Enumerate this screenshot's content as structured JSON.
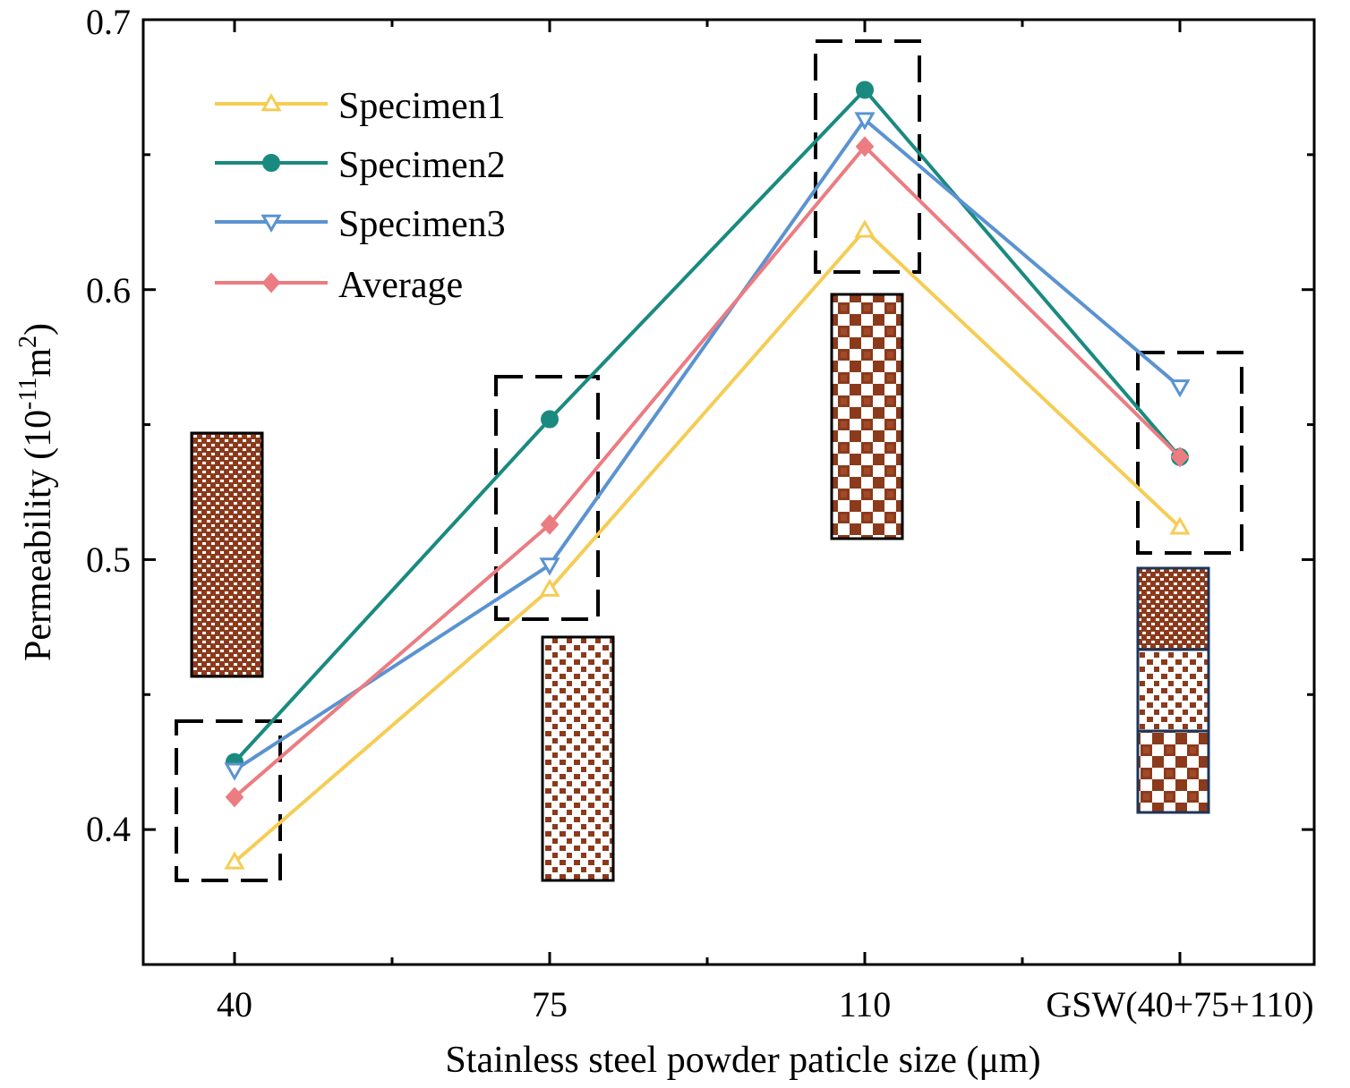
{
  "chart_data": {
    "type": "line",
    "title": "",
    "xlabel": "Stainless steel powder paticle size (μm)",
    "ylabel": "Permeability (10",
    "ylabel_exp1": "-11",
    "ylabel_unit": "m",
    "ylabel_exp2": "2",
    "ylabel_close": ")",
    "categories": [
      "40",
      "75",
      "110",
      "GSW(40+75+110)"
    ],
    "ylim": [
      0.35,
      0.7
    ],
    "yticks": [
      0.4,
      0.5,
      0.6,
      0.7
    ],
    "ytick_labels": [
      "0.4",
      "0.5",
      "0.6",
      "0.7"
    ],
    "series": [
      {
        "name": "Specimen1",
        "color": "#f5cd55",
        "marker": "triangle-up-open",
        "values": [
          0.388,
          0.489,
          0.622,
          0.512
        ]
      },
      {
        "name": "Specimen2",
        "color": "#1a8a80",
        "marker": "circle",
        "values": [
          0.425,
          0.552,
          0.674,
          0.538
        ]
      },
      {
        "name": "Specimen3",
        "color": "#5b93d1",
        "marker": "triangle-down-open",
        "values": [
          0.422,
          0.498,
          0.663,
          0.564
        ]
      },
      {
        "name": "Average",
        "color": "#eb7c82",
        "marker": "diamond",
        "values": [
          0.412,
          0.513,
          0.653,
          0.538
        ]
      }
    ],
    "legend_position": "top-left",
    "colors": {
      "particle": "#8b3a1c",
      "frame": "#000000",
      "gsw_frame": "#1d3557"
    }
  }
}
